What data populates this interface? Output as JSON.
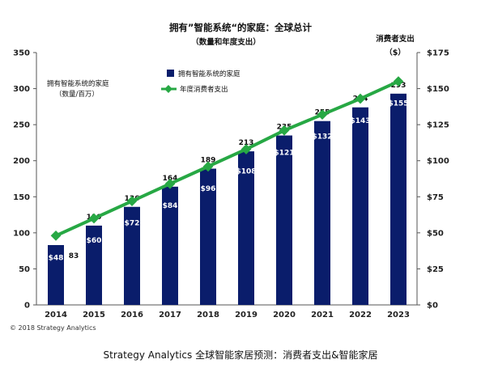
{
  "chart_data": {
    "type": "bar",
    "title": "拥有”智能系统“的家庭：全球总计",
    "subtitle": "（数量和年度支出）",
    "left_axis_label": [
      "拥有智能系统的家庭",
      "（数量/百万）"
    ],
    "right_axis_label": [
      "消费者支出",
      "（$）"
    ],
    "categories": [
      "2014",
      "2015",
      "2016",
      "2017",
      "2018",
      "2019",
      "2020",
      "2021",
      "2022",
      "2023"
    ],
    "ylim": [
      0,
      350
    ],
    "y_ticks": [
      "0",
      "50",
      "100",
      "150",
      "200",
      "250",
      "300",
      "350"
    ],
    "y2lim": [
      0,
      175
    ],
    "y2_ticks": [
      "$0",
      "$25",
      "$50",
      "$75",
      "$100",
      "$125",
      "$150",
      "$175"
    ],
    "series": [
      {
        "name": "拥有智能系统的家庭",
        "type": "bar",
        "axis": "left",
        "values": [
          83,
          110,
          136,
          164,
          189,
          213,
          235,
          255,
          274,
          293
        ],
        "labels": [
          "83",
          "110",
          "136",
          "164",
          "189",
          "213",
          "235",
          "255",
          "274",
          "293"
        ],
        "color": "#0a1d6b"
      },
      {
        "name": "年度消费者支出",
        "type": "line",
        "axis": "right",
        "values": [
          48,
          60,
          72,
          84,
          96,
          108,
          121,
          132,
          143,
          155
        ],
        "labels": [
          "$48",
          "$60",
          "$72",
          "$84",
          "$96",
          "$108",
          "$121",
          "$132",
          "$143",
          "$155"
        ],
        "color": "#27a844"
      }
    ],
    "legend_position": "top-left",
    "grid": false
  },
  "copyright": "© 2018 Strategy Analytics",
  "caption": "Strategy Analytics 全球智能家居预测：消费者支出&智能家居"
}
